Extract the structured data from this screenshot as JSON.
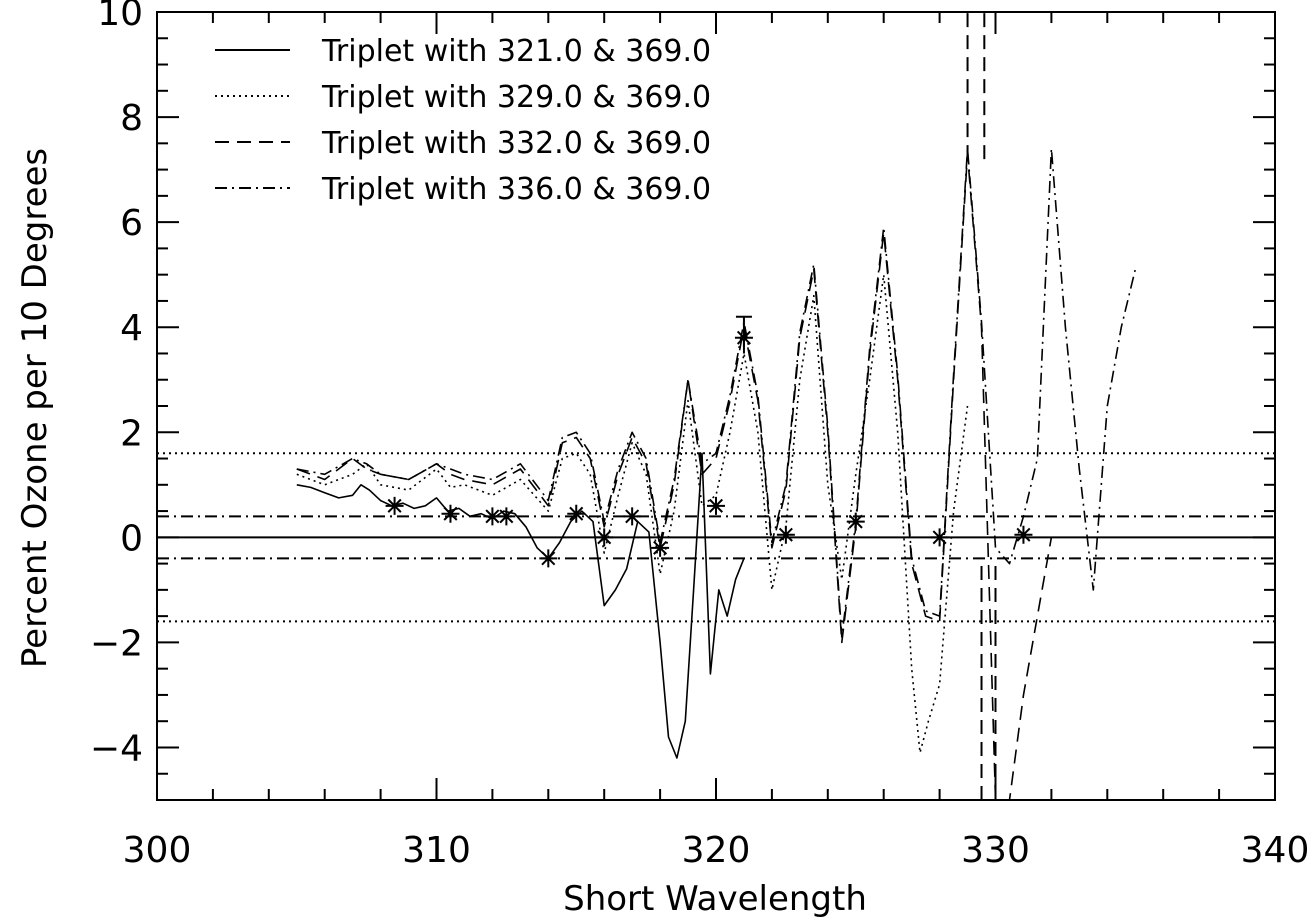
{
  "chart_data": {
    "type": "line",
    "title": "",
    "xlabel": "Short Wavelength",
    "ylabel": "Percent Ozone per 10 Degrees",
    "xlim": [
      300,
      340
    ],
    "ylim": [
      -5,
      10
    ],
    "x_ticks": [
      300,
      310,
      320,
      330,
      340
    ],
    "x_tick_labels": [
      "300",
      "310",
      "320",
      "330",
      "340"
    ],
    "y_ticks": [
      -4,
      -2,
      0,
      2,
      4,
      6,
      8,
      10
    ],
    "y_tick_labels": [
      "−4",
      "−2",
      "0",
      "2",
      "4",
      "6",
      "8",
      "10"
    ],
    "grid": false,
    "legend_position": "top-left",
    "series": [
      {
        "name": "Triplet with 321.0 & 369.0",
        "style": "solid",
        "x": [
          305.0,
          305.5,
          306.0,
          306.5,
          307.0,
          307.3,
          307.6,
          308.0,
          308.4,
          308.8,
          309.2,
          309.6,
          310.0,
          310.4,
          310.8,
          311.2,
          311.6,
          312.0,
          312.4,
          312.8,
          313.2,
          313.6,
          314.0,
          314.4,
          314.8,
          315.2,
          315.6,
          316.0,
          316.4,
          316.8,
          317.2,
          317.6,
          318.0,
          318.3,
          318.6,
          318.9,
          319.2,
          319.5,
          319.8,
          320.1,
          320.4,
          320.7,
          321.0
        ],
        "y": [
          1.0,
          0.95,
          0.85,
          0.75,
          0.8,
          1.0,
          0.9,
          0.7,
          0.6,
          0.65,
          0.55,
          0.6,
          0.75,
          0.5,
          0.55,
          0.4,
          0.45,
          0.35,
          0.5,
          0.45,
          0.2,
          -0.2,
          -0.4,
          -0.1,
          0.3,
          0.5,
          0.3,
          -1.3,
          -1.0,
          -0.6,
          0.3,
          0.1,
          -2.0,
          -3.8,
          -4.2,
          -3.5,
          -1.0,
          1.6,
          -2.6,
          -1.0,
          -1.5,
          -0.8,
          -0.4
        ]
      },
      {
        "name": "Triplet with 329.0 & 369.0",
        "style": "dotted",
        "x": [
          305.0,
          306.0,
          307.0,
          307.5,
          308.0,
          309.0,
          310.0,
          310.5,
          311.0,
          312.0,
          313.0,
          314.0,
          314.5,
          315.0,
          315.5,
          316.0,
          316.5,
          317.0,
          317.5,
          318.0,
          318.5,
          319.0,
          319.5,
          320.0,
          320.5,
          321.0,
          321.5,
          322.0,
          322.5,
          323.0,
          323.5,
          324.0,
          324.5,
          325.0,
          325.5,
          326.0,
          326.5,
          327.0,
          327.3,
          327.6,
          328.0,
          328.5,
          329.0
        ],
        "y": [
          1.2,
          1.0,
          1.2,
          1.4,
          1.0,
          0.9,
          1.3,
          0.95,
          1.0,
          0.8,
          1.1,
          0.5,
          1.5,
          1.6,
          1.2,
          -0.3,
          0.8,
          1.8,
          1.2,
          -0.7,
          0.5,
          2.6,
          0.6,
          0.8,
          2.0,
          3.5,
          2.0,
          -1.0,
          0.2,
          3.0,
          4.6,
          1.0,
          -0.8,
          1.2,
          3.0,
          5.0,
          2.0,
          -2.5,
          -4.1,
          -3.5,
          -2.8,
          0.5,
          2.5
        ]
      },
      {
        "name": "Triplet with 332.0 & 369.0",
        "style": "dashed",
        "x": [
          305.0,
          306.0,
          307.0,
          307.5,
          308.0,
          309.0,
          310.0,
          310.5,
          311.0,
          312.0,
          313.0,
          314.0,
          314.5,
          315.0,
          315.5,
          316.0,
          316.5,
          317.0,
          317.5,
          318.0,
          318.5,
          319.0,
          319.5,
          320.0,
          320.5,
          321.0,
          321.5,
          322.0,
          322.5,
          323.0,
          323.5,
          324.0,
          324.5,
          325.0,
          325.5,
          326.0,
          326.5,
          327.0,
          327.5,
          328.0,
          328.5,
          329.0,
          329.5,
          330.0,
          330.5,
          331.0,
          331.5,
          332.0
        ],
        "y": [
          1.3,
          1.1,
          1.5,
          1.3,
          1.2,
          1.1,
          1.4,
          1.2,
          1.1,
          1.0,
          1.3,
          0.6,
          1.8,
          1.9,
          1.5,
          0.2,
          1.2,
          1.9,
          1.4,
          -0.2,
          1.0,
          3.0,
          1.2,
          1.5,
          2.6,
          4.0,
          2.6,
          -0.2,
          0.9,
          3.8,
          5.1,
          2.0,
          -2.0,
          0.2,
          3.5,
          5.8,
          3.0,
          -0.5,
          -1.5,
          -1.6,
          3.0,
          7.3,
          4.0,
          -5.0,
          -5.0,
          -3.0,
          -1.5,
          0.0
        ]
      },
      {
        "name": "Triplet with 336.0 & 369.0",
        "style": "dashdot",
        "x": [
          305.0,
          306.0,
          307.0,
          307.5,
          308.0,
          309.0,
          310.0,
          310.5,
          311.0,
          312.0,
          313.0,
          314.0,
          314.5,
          315.0,
          315.5,
          316.0,
          316.5,
          317.0,
          317.5,
          318.0,
          318.5,
          319.0,
          319.5,
          320.0,
          320.5,
          321.0,
          321.5,
          322.0,
          322.5,
          323.0,
          323.5,
          324.0,
          324.5,
          325.0,
          325.5,
          326.0,
          326.5,
          327.0,
          327.5,
          328.0,
          328.5,
          329.0,
          329.5,
          330.0,
          330.5,
          331.0,
          331.5,
          332.0,
          332.5,
          333.0,
          333.5,
          334.0,
          334.5,
          335.0
        ],
        "y": [
          1.3,
          1.2,
          1.5,
          1.4,
          1.2,
          1.1,
          1.4,
          1.3,
          1.2,
          1.1,
          1.4,
          0.7,
          1.9,
          2.0,
          1.6,
          0.3,
          1.3,
          2.0,
          1.5,
          -0.1,
          1.1,
          3.0,
          1.4,
          1.6,
          2.7,
          4.1,
          2.7,
          -0.1,
          1.0,
          3.9,
          5.2,
          2.1,
          -1.9,
          0.3,
          3.6,
          5.9,
          3.1,
          -0.4,
          -1.4,
          -1.5,
          3.1,
          7.4,
          4.1,
          -0.2,
          -0.5,
          0.4,
          1.5,
          7.4,
          4.0,
          1.3,
          -1.0,
          2.5,
          4.0,
          5.1
        ]
      }
    ],
    "markers": {
      "style": "asterisk",
      "x": [
        308.5,
        310.5,
        312.0,
        312.5,
        314.0,
        315.0,
        316.0,
        317.0,
        318.0,
        320.0,
        321.0,
        322.5,
        325.0,
        328.0,
        331.0
      ],
      "y": [
        0.6,
        0.45,
        0.4,
        0.4,
        -0.4,
        0.45,
        0.0,
        0.4,
        -0.2,
        0.6,
        3.8,
        0.05,
        0.3,
        0.0,
        0.05
      ]
    },
    "error_bar": {
      "x": 321.0,
      "y_low": 3.5,
      "y_high": 4.2
    },
    "vertical_lines": [
      {
        "x": 329.0,
        "y_from": 7.2,
        "y_to": 10.0,
        "style": "dashed"
      },
      {
        "x": 329.6,
        "y_from": 7.2,
        "y_to": 10.0,
        "style": "dashed"
      },
      {
        "x": 329.5,
        "y_from": -5.0,
        "y_to": -0.5,
        "style": "dashed"
      },
      {
        "x": 330.0,
        "y_from": -5.0,
        "y_to": -0.5,
        "style": "dashed"
      }
    ],
    "reference_lines": [
      {
        "y": 0,
        "style": "solid"
      },
      {
        "y": 1.6,
        "style": "dotted"
      },
      {
        "y": 0.4,
        "style": "dashdot"
      },
      {
        "y": -0.4,
        "style": "dashdot"
      },
      {
        "y": -1.6,
        "style": "dotted"
      }
    ]
  }
}
